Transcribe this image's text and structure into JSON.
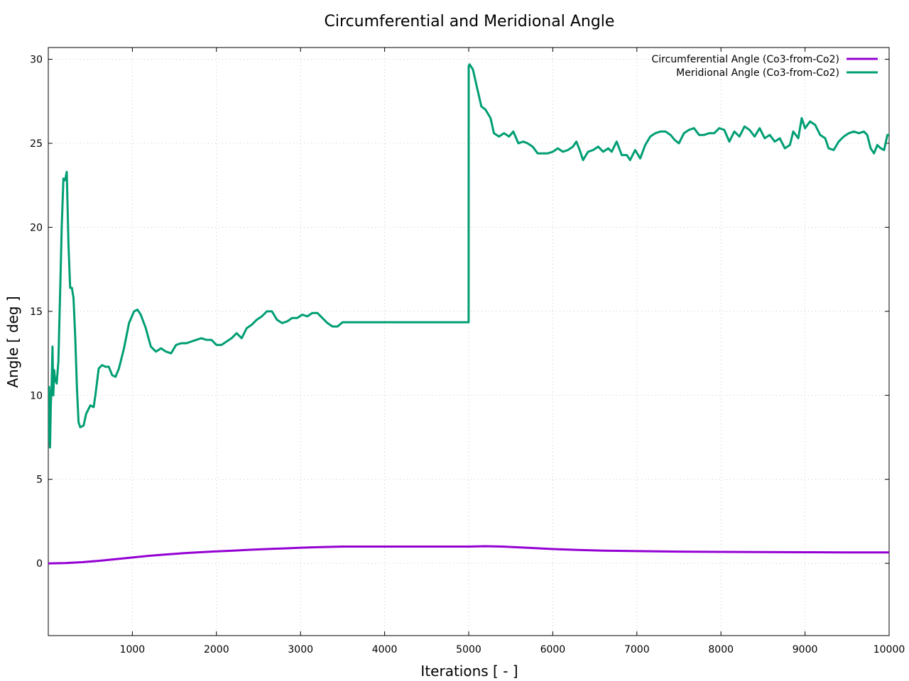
{
  "chart_data": {
    "type": "line",
    "title": "Circumferential and Meridional Angle",
    "xlabel": "Iterations [ - ]",
    "ylabel": "Angle [ deg ]",
    "xlim": [
      0,
      10000
    ],
    "ylim": [
      -4.3,
      30.7
    ],
    "xticks": [
      1000,
      2000,
      3000,
      4000,
      5000,
      6000,
      7000,
      8000,
      9000,
      10000
    ],
    "yticks": [
      0,
      5,
      10,
      15,
      20,
      25,
      30
    ],
    "grid": true,
    "legend_position": "top-right",
    "series": [
      {
        "name": "Circumferential Angle (Co3-from-Co2)",
        "color": "#9400d3",
        "points": [
          [
            0,
            0
          ],
          [
            200,
            0.02
          ],
          [
            400,
            0.07
          ],
          [
            600,
            0.15
          ],
          [
            800,
            0.25
          ],
          [
            1000,
            0.35
          ],
          [
            1200,
            0.45
          ],
          [
            1400,
            0.53
          ],
          [
            1600,
            0.6
          ],
          [
            1800,
            0.66
          ],
          [
            2000,
            0.71
          ],
          [
            2200,
            0.76
          ],
          [
            2400,
            0.81
          ],
          [
            2600,
            0.85
          ],
          [
            2800,
            0.89
          ],
          [
            3000,
            0.93
          ],
          [
            3200,
            0.96
          ],
          [
            3500,
            1.0
          ],
          [
            4000,
            1.0
          ],
          [
            4500,
            1.0
          ],
          [
            5000,
            1.0
          ],
          [
            5200,
            1.02
          ],
          [
            5400,
            1.0
          ],
          [
            5600,
            0.95
          ],
          [
            5800,
            0.9
          ],
          [
            6000,
            0.85
          ],
          [
            6300,
            0.8
          ],
          [
            6600,
            0.76
          ],
          [
            7000,
            0.73
          ],
          [
            7500,
            0.7
          ],
          [
            8000,
            0.68
          ],
          [
            8500,
            0.67
          ],
          [
            9000,
            0.66
          ],
          [
            9500,
            0.65
          ],
          [
            10000,
            0.65
          ]
        ]
      },
      {
        "name": "Meridional Angle (Co3-from-Co2)",
        "color": "#009e73",
        "points": [
          [
            0,
            7.2
          ],
          [
            10,
            10.5
          ],
          [
            20,
            6.9
          ],
          [
            30,
            9.5
          ],
          [
            40,
            10.5
          ],
          [
            50,
            12.9
          ],
          [
            60,
            10.0
          ],
          [
            70,
            11.5
          ],
          [
            80,
            11.0
          ],
          [
            100,
            10.7
          ],
          [
            120,
            12.0
          ],
          [
            140,
            16.0
          ],
          [
            160,
            20.0
          ],
          [
            180,
            22.9
          ],
          [
            200,
            22.8
          ],
          [
            220,
            23.3
          ],
          [
            240,
            19.0
          ],
          [
            260,
            16.4
          ],
          [
            280,
            16.4
          ],
          [
            300,
            15.8
          ],
          [
            320,
            13.5
          ],
          [
            340,
            10.5
          ],
          [
            360,
            8.4
          ],
          [
            380,
            8.1
          ],
          [
            420,
            8.2
          ],
          [
            450,
            8.9
          ],
          [
            500,
            9.4
          ],
          [
            540,
            9.3
          ],
          [
            560,
            10.0
          ],
          [
            600,
            11.6
          ],
          [
            640,
            11.8
          ],
          [
            680,
            11.7
          ],
          [
            720,
            11.7
          ],
          [
            760,
            11.2
          ],
          [
            800,
            11.1
          ],
          [
            840,
            11.6
          ],
          [
            900,
            12.8
          ],
          [
            960,
            14.3
          ],
          [
            1020,
            15.0
          ],
          [
            1060,
            15.1
          ],
          [
            1100,
            14.8
          ],
          [
            1160,
            14.0
          ],
          [
            1220,
            12.9
          ],
          [
            1280,
            12.6
          ],
          [
            1340,
            12.8
          ],
          [
            1400,
            12.6
          ],
          [
            1460,
            12.5
          ],
          [
            1520,
            13.0
          ],
          [
            1580,
            13.1
          ],
          [
            1640,
            13.1
          ],
          [
            1700,
            13.2
          ],
          [
            1760,
            13.3
          ],
          [
            1820,
            13.4
          ],
          [
            1880,
            13.3
          ],
          [
            1940,
            13.3
          ],
          [
            2000,
            13.0
          ],
          [
            2060,
            13.0
          ],
          [
            2120,
            13.2
          ],
          [
            2180,
            13.4
          ],
          [
            2240,
            13.7
          ],
          [
            2300,
            13.4
          ],
          [
            2360,
            14.0
          ],
          [
            2420,
            14.2
          ],
          [
            2480,
            14.5
          ],
          [
            2540,
            14.7
          ],
          [
            2600,
            15.0
          ],
          [
            2660,
            15.0
          ],
          [
            2720,
            14.5
          ],
          [
            2780,
            14.3
          ],
          [
            2840,
            14.4
          ],
          [
            2900,
            14.6
          ],
          [
            2960,
            14.6
          ],
          [
            3020,
            14.8
          ],
          [
            3080,
            14.7
          ],
          [
            3140,
            14.9
          ],
          [
            3200,
            14.9
          ],
          [
            3260,
            14.6
          ],
          [
            3320,
            14.3
          ],
          [
            3380,
            14.1
          ],
          [
            3440,
            14.1
          ],
          [
            3500,
            14.35
          ],
          [
            3600,
            14.35
          ],
          [
            3800,
            14.35
          ],
          [
            4000,
            14.35
          ],
          [
            4400,
            14.35
          ],
          [
            4800,
            14.35
          ],
          [
            4999,
            14.35
          ],
          [
            5000,
            29.6
          ],
          [
            5010,
            29.7
          ],
          [
            5050,
            29.4
          ],
          [
            5100,
            28.3
          ],
          [
            5150,
            27.2
          ],
          [
            5200,
            27.0
          ],
          [
            5260,
            26.5
          ],
          [
            5300,
            25.6
          ],
          [
            5360,
            25.4
          ],
          [
            5420,
            25.6
          ],
          [
            5480,
            25.4
          ],
          [
            5530,
            25.7
          ],
          [
            5590,
            25.0
          ],
          [
            5650,
            25.1
          ],
          [
            5700,
            25.0
          ],
          [
            5760,
            24.8
          ],
          [
            5820,
            24.4
          ],
          [
            5880,
            24.4
          ],
          [
            5940,
            24.4
          ],
          [
            6000,
            24.5
          ],
          [
            6060,
            24.7
          ],
          [
            6120,
            24.5
          ],
          [
            6180,
            24.6
          ],
          [
            6240,
            24.8
          ],
          [
            6280,
            25.1
          ],
          [
            6320,
            24.6
          ],
          [
            6360,
            24.0
          ],
          [
            6420,
            24.5
          ],
          [
            6480,
            24.6
          ],
          [
            6540,
            24.8
          ],
          [
            6600,
            24.5
          ],
          [
            6660,
            24.7
          ],
          [
            6700,
            24.5
          ],
          [
            6760,
            25.1
          ],
          [
            6820,
            24.3
          ],
          [
            6880,
            24.3
          ],
          [
            6920,
            24.0
          ],
          [
            6980,
            24.6
          ],
          [
            7040,
            24.1
          ],
          [
            7100,
            24.9
          ],
          [
            7160,
            25.4
          ],
          [
            7220,
            25.6
          ],
          [
            7280,
            25.7
          ],
          [
            7340,
            25.7
          ],
          [
            7400,
            25.5
          ],
          [
            7450,
            25.2
          ],
          [
            7500,
            25.0
          ],
          [
            7560,
            25.6
          ],
          [
            7620,
            25.8
          ],
          [
            7680,
            25.9
          ],
          [
            7740,
            25.5
          ],
          [
            7800,
            25.5
          ],
          [
            7860,
            25.6
          ],
          [
            7920,
            25.6
          ],
          [
            7980,
            25.9
          ],
          [
            8040,
            25.8
          ],
          [
            8100,
            25.1
          ],
          [
            8160,
            25.7
          ],
          [
            8220,
            25.4
          ],
          [
            8280,
            26.0
          ],
          [
            8340,
            25.8
          ],
          [
            8400,
            25.4
          ],
          [
            8460,
            25.9
          ],
          [
            8520,
            25.3
          ],
          [
            8580,
            25.5
          ],
          [
            8640,
            25.1
          ],
          [
            8700,
            25.3
          ],
          [
            8760,
            24.7
          ],
          [
            8820,
            24.9
          ],
          [
            8860,
            25.7
          ],
          [
            8920,
            25.3
          ],
          [
            8960,
            26.5
          ],
          [
            9000,
            25.9
          ],
          [
            9060,
            26.3
          ],
          [
            9120,
            26.1
          ],
          [
            9180,
            25.5
          ],
          [
            9240,
            25.3
          ],
          [
            9280,
            24.7
          ],
          [
            9340,
            24.6
          ],
          [
            9400,
            25.1
          ],
          [
            9460,
            25.4
          ],
          [
            9520,
            25.6
          ],
          [
            9580,
            25.7
          ],
          [
            9640,
            25.6
          ],
          [
            9700,
            25.7
          ],
          [
            9740,
            25.5
          ],
          [
            9780,
            24.7
          ],
          [
            9820,
            24.4
          ],
          [
            9860,
            24.9
          ],
          [
            9900,
            24.7
          ],
          [
            9940,
            24.6
          ],
          [
            9980,
            25.5
          ],
          [
            10000,
            25.5
          ]
        ]
      }
    ]
  }
}
